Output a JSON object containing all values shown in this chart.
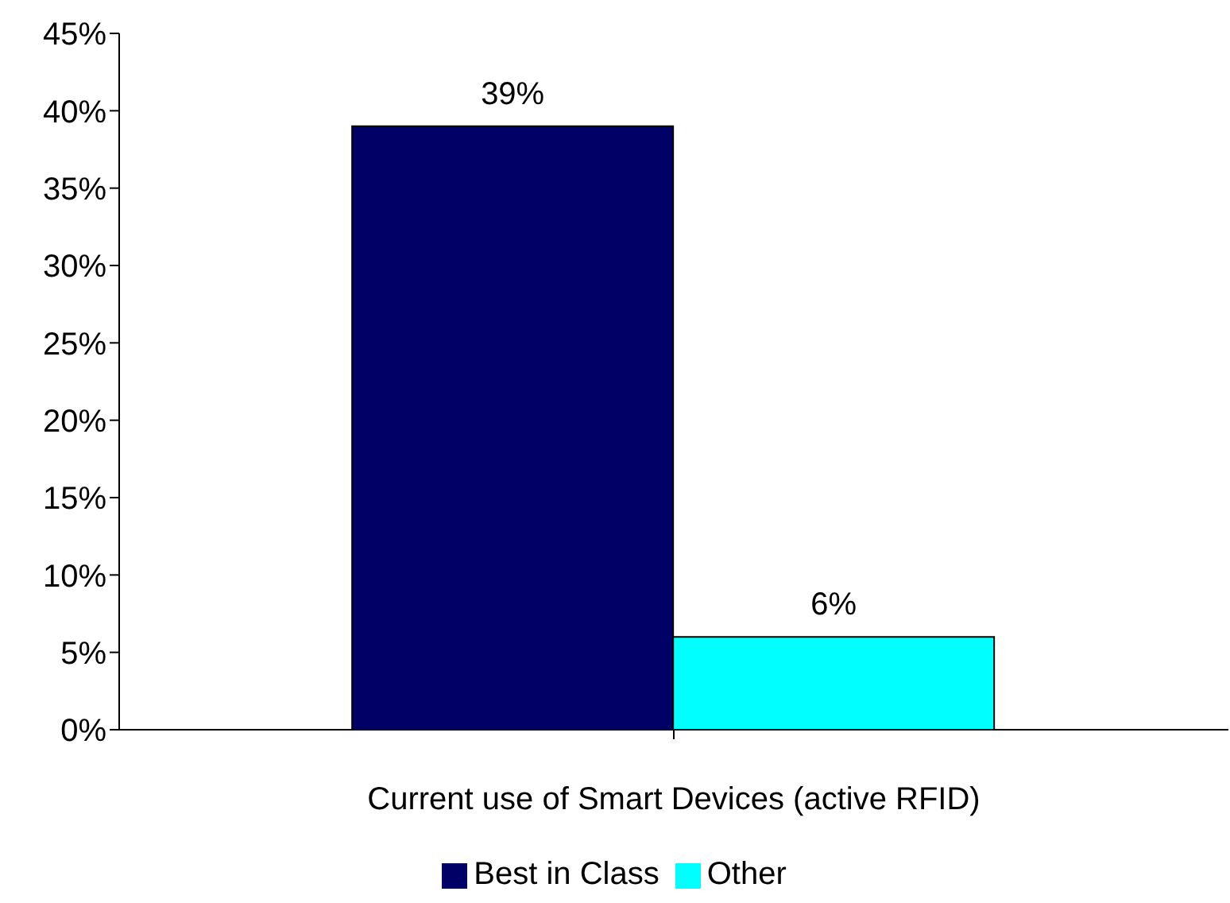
{
  "chart_data": {
    "type": "bar",
    "categories": [
      "Current use of Smart Devices (active RFID)"
    ],
    "series": [
      {
        "name": "Best in Class",
        "color": "#000066",
        "values": [
          39
        ],
        "value_labels": [
          "39%"
        ]
      },
      {
        "name": "Other",
        "color": "#00ffff",
        "values": [
          6
        ],
        "value_labels": [
          "6%"
        ]
      }
    ],
    "ylim": [
      0,
      45
    ],
    "yticks": [
      {
        "value": 0,
        "label": "0%"
      },
      {
        "value": 5,
        "label": "5%"
      },
      {
        "value": 10,
        "label": "10%"
      },
      {
        "value": 15,
        "label": "15%"
      },
      {
        "value": 20,
        "label": "20%"
      },
      {
        "value": 25,
        "label": "25%"
      },
      {
        "value": 30,
        "label": "30%"
      },
      {
        "value": 35,
        "label": "35%"
      },
      {
        "value": 40,
        "label": "40%"
      },
      {
        "value": 45,
        "label": "45%"
      }
    ],
    "grid": false,
    "legend": "bottom"
  }
}
